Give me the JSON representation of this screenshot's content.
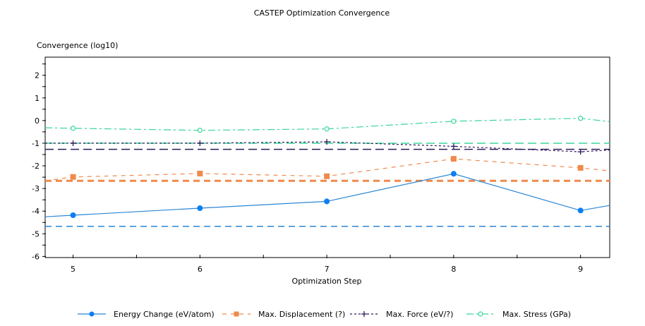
{
  "chart_data": {
    "type": "line",
    "title": "CASTEP Optimization Convergence",
    "xlabel": "Optimization Step",
    "ylabel": "Convergence (log10)",
    "xlim": [
      4.78,
      9.23
    ],
    "ylim": [
      -6.05,
      2.8
    ],
    "x_ticks": [
      5,
      6,
      7,
      8,
      9
    ],
    "x_tick_labels": [
      "5",
      "6",
      "7",
      "8",
      "9"
    ],
    "y_ticks": [
      2,
      1,
      0,
      -1,
      -2,
      -3,
      -4,
      -5,
      -6
    ],
    "y_tick_labels": [
      "2",
      "1",
      "0",
      "-1",
      "-2",
      "-3",
      "-4",
      "-5",
      "-6"
    ],
    "grid": false,
    "legend_position": "bottom",
    "x": [
      5,
      6,
      7,
      8,
      9
    ],
    "series": [
      {
        "name": "Energy Change (eV/atom)",
        "color": "#2a86d4",
        "marker_color": "#0b7ff2",
        "marker": "circle",
        "line_style": "solid",
        "values": [
          -4.18,
          -3.87,
          -3.57,
          -2.35,
          -3.97
        ],
        "left_edge_value": -4.25,
        "right_edge_value": -3.75,
        "threshold": -4.67
      },
      {
        "name": "Max. Displacement (?)",
        "color": "#f08a4b",
        "marker_color": "#f08a4b",
        "marker": "square",
        "line_style": "dash",
        "values": [
          -2.49,
          -2.34,
          -2.46,
          -1.69,
          -2.09
        ],
        "left_edge_value": -2.66,
        "right_edge_value": -2.22,
        "threshold": -2.66
      },
      {
        "name": "Max. Force (eV/?)",
        "color": "#2d1a5c",
        "marker_color": "#2d1a5c",
        "marker": "plus",
        "line_style": "shortdash",
        "values": [
          -1.0,
          -1.0,
          -0.94,
          -1.14,
          -1.38
        ],
        "left_edge_value": -1.0,
        "right_edge_value": -1.3,
        "threshold": -1.27
      },
      {
        "name": "Max. Stress (GPa)",
        "color": "#3ad69a",
        "marker_color": "#3ad69a",
        "marker": "open-circle",
        "line_style": "dashdot",
        "values": [
          -0.34,
          -0.43,
          -0.37,
          -0.03,
          0.1
        ],
        "left_edge_value": -0.32,
        "right_edge_value": -0.05,
        "threshold": -1.0
      }
    ]
  }
}
